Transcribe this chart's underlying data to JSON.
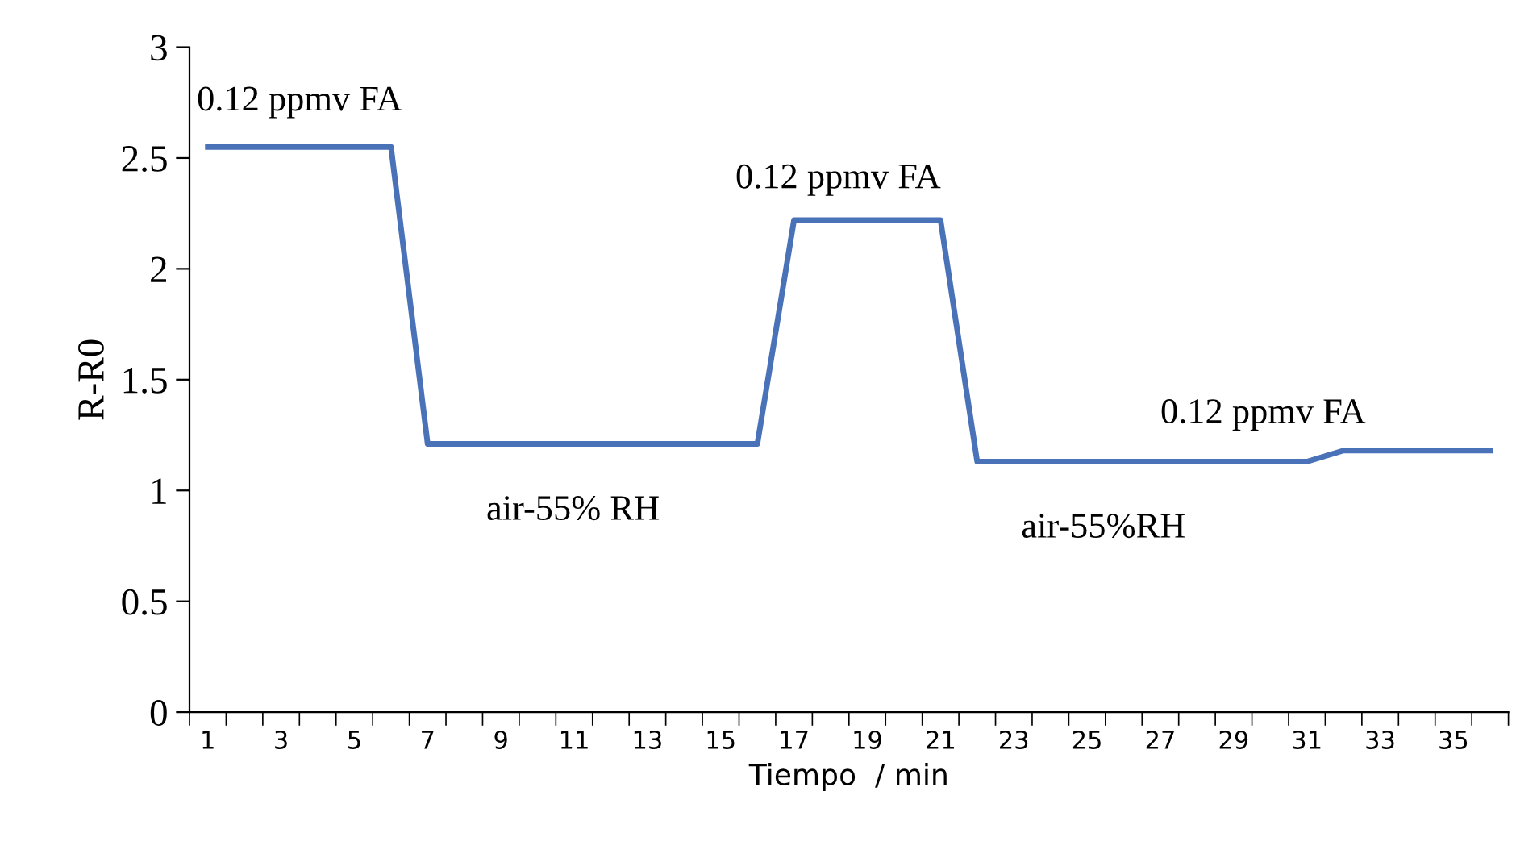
{
  "chart_data": {
    "type": "line",
    "xlabel": "Tiempo  / min",
    "ylabel": "R-R0",
    "categories": [
      "1",
      null,
      "3",
      null,
      "5",
      null,
      "7",
      null,
      "9",
      null,
      "11",
      null,
      "13",
      null,
      "15",
      null,
      "17",
      null,
      "19",
      null,
      "21",
      null,
      "23",
      null,
      "25",
      null,
      "27",
      null,
      "29",
      null,
      "31",
      null,
      "33",
      null,
      "35",
      null
    ],
    "series": [
      {
        "color": "#4a72b8",
        "values": [
          2.55,
          2.55,
          2.55,
          2.55,
          2.55,
          2.55,
          1.21,
          1.21,
          1.21,
          1.21,
          1.21,
          1.21,
          1.21,
          1.21,
          1.21,
          1.21,
          2.22,
          2.22,
          2.22,
          2.22,
          2.22,
          1.13,
          1.13,
          1.13,
          1.13,
          1.13,
          1.13,
          1.13,
          1.13,
          1.13,
          1.13,
          1.18,
          1.18,
          1.18,
          1.18,
          1.18
        ]
      }
    ],
    "ylim": [
      0,
      3
    ],
    "yticks": [
      0,
      0.5,
      1,
      1.5,
      2,
      2.5,
      3
    ],
    "grid": false,
    "legend": false,
    "marker": "none",
    "line_style": "solid",
    "annotations": [
      "0.12 ppmv FA",
      "0.12 ppmv FA",
      "0.12 ppmv FA",
      "air-55% RH",
      "air-55%RH"
    ]
  }
}
